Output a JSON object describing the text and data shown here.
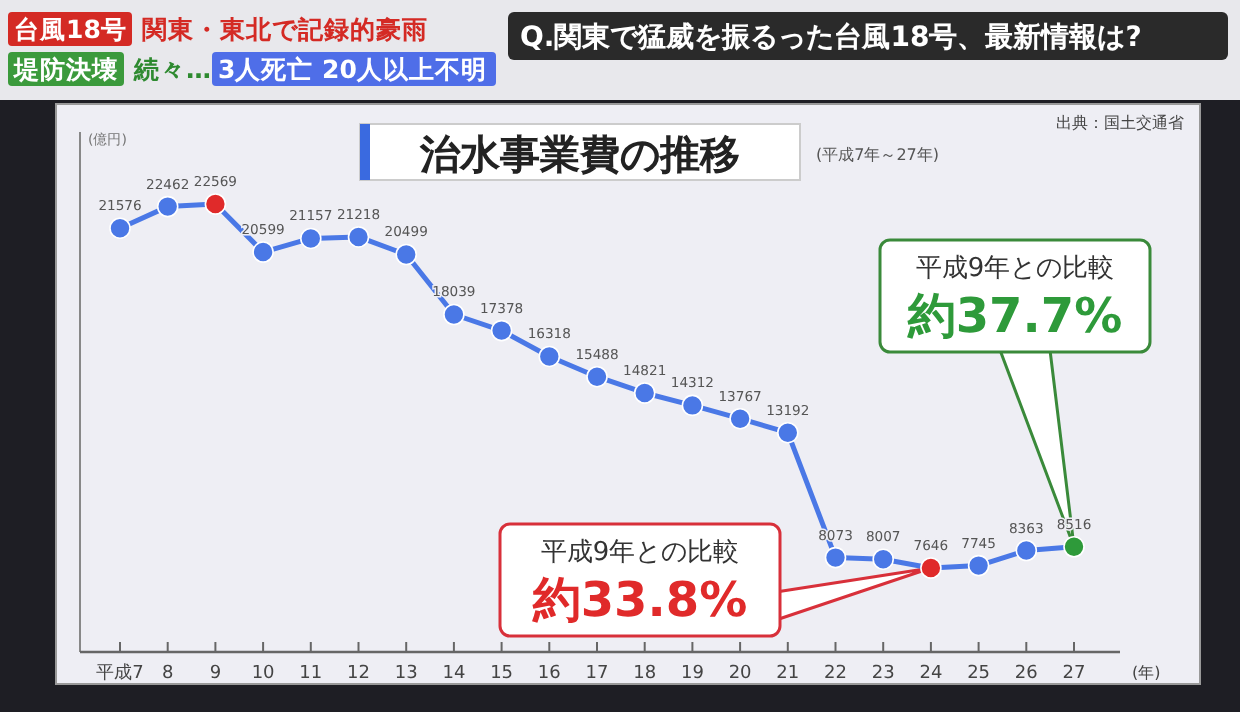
{
  "chart_data": {
    "type": "line",
    "title": "治水事業費の推移",
    "subtitle": "(平成7年～27年)",
    "ylabel": "(億円)",
    "xlabel": "(年)",
    "categories": [
      "平成7",
      "8",
      "9",
      "10",
      "11",
      "12",
      "13",
      "14",
      "15",
      "16",
      "17",
      "18",
      "19",
      "20",
      "21",
      "22",
      "23",
      "24",
      "25",
      "26",
      "27"
    ],
    "series": [
      {
        "color": "#4a78e6",
        "colors": [
          "#4a78e6",
          "#4a78e6",
          "#e02a2a",
          "#4a78e6",
          "#4a78e6",
          "#4a78e6",
          "#4a78e6",
          "#4a78e6",
          "#4a78e6",
          "#4a78e6",
          "#4a78e6",
          "#4a78e6",
          "#4a78e6",
          "#4a78e6",
          "#4a78e6",
          "#4a78e6",
          "#4a78e6",
          "#e02a2a",
          "#4a78e6",
          "#4a78e6",
          "#2e9a3a"
        ],
        "values": [
          21576,
          22462,
          22569,
          20599,
          21157,
          21218,
          20499,
          18039,
          17378,
          16318,
          15488,
          14821,
          14312,
          13767,
          13192,
          8073,
          8007,
          7646,
          7745,
          8363,
          8516
        ]
      }
    ],
    "data_labels": true,
    "marker": "circle",
    "line_style": "solid",
    "annotations": [
      "台風18号",
      "関東・東北で記録的豪雨",
      "堤防決壊",
      "続々…",
      "3人死亡 20人以上不明",
      "Q.関東で猛威を振るった台風18号、最新情報は?",
      "出典：国土交通省",
      "平成9年との比較",
      {
        "text": "約33.8%",
        "x": "24",
        "y": 7646
      },
      "平成9年との比較",
      {
        "text": "約37.7%",
        "x": "27",
        "y": 8516
      }
    ]
  }
}
